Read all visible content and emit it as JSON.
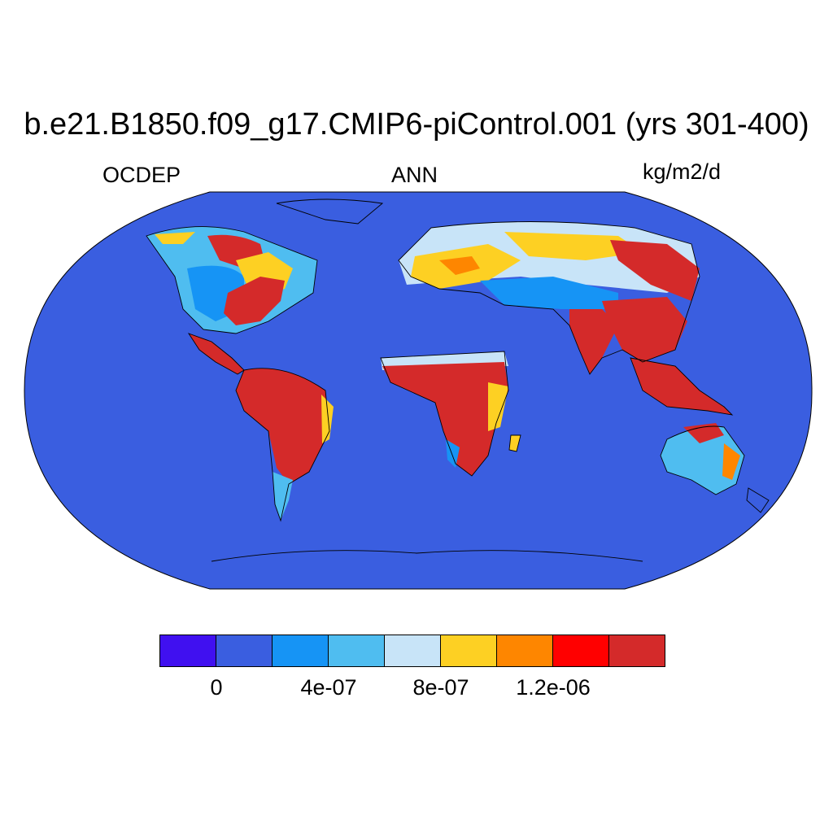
{
  "title": "b.e21.B1850.f09_g17.CMIP6-piControl.001 (yrs 301-400)",
  "variable": "OCDEP",
  "season": "ANN",
  "units": "kg/m2/d",
  "map": {
    "projection": "Robinson",
    "background_color": "#3a5ee0"
  },
  "colorbar": {
    "colors": [
      "#4010f0",
      "#3a5ee0",
      "#1694f5",
      "#4fbdf0",
      "#c8e4f8",
      "#fdd023",
      "#fe8600",
      "#ff0000",
      "#d42a2a"
    ],
    "labels": [
      "0",
      "4e-07",
      "8e-07",
      "1.2e-06"
    ]
  }
}
